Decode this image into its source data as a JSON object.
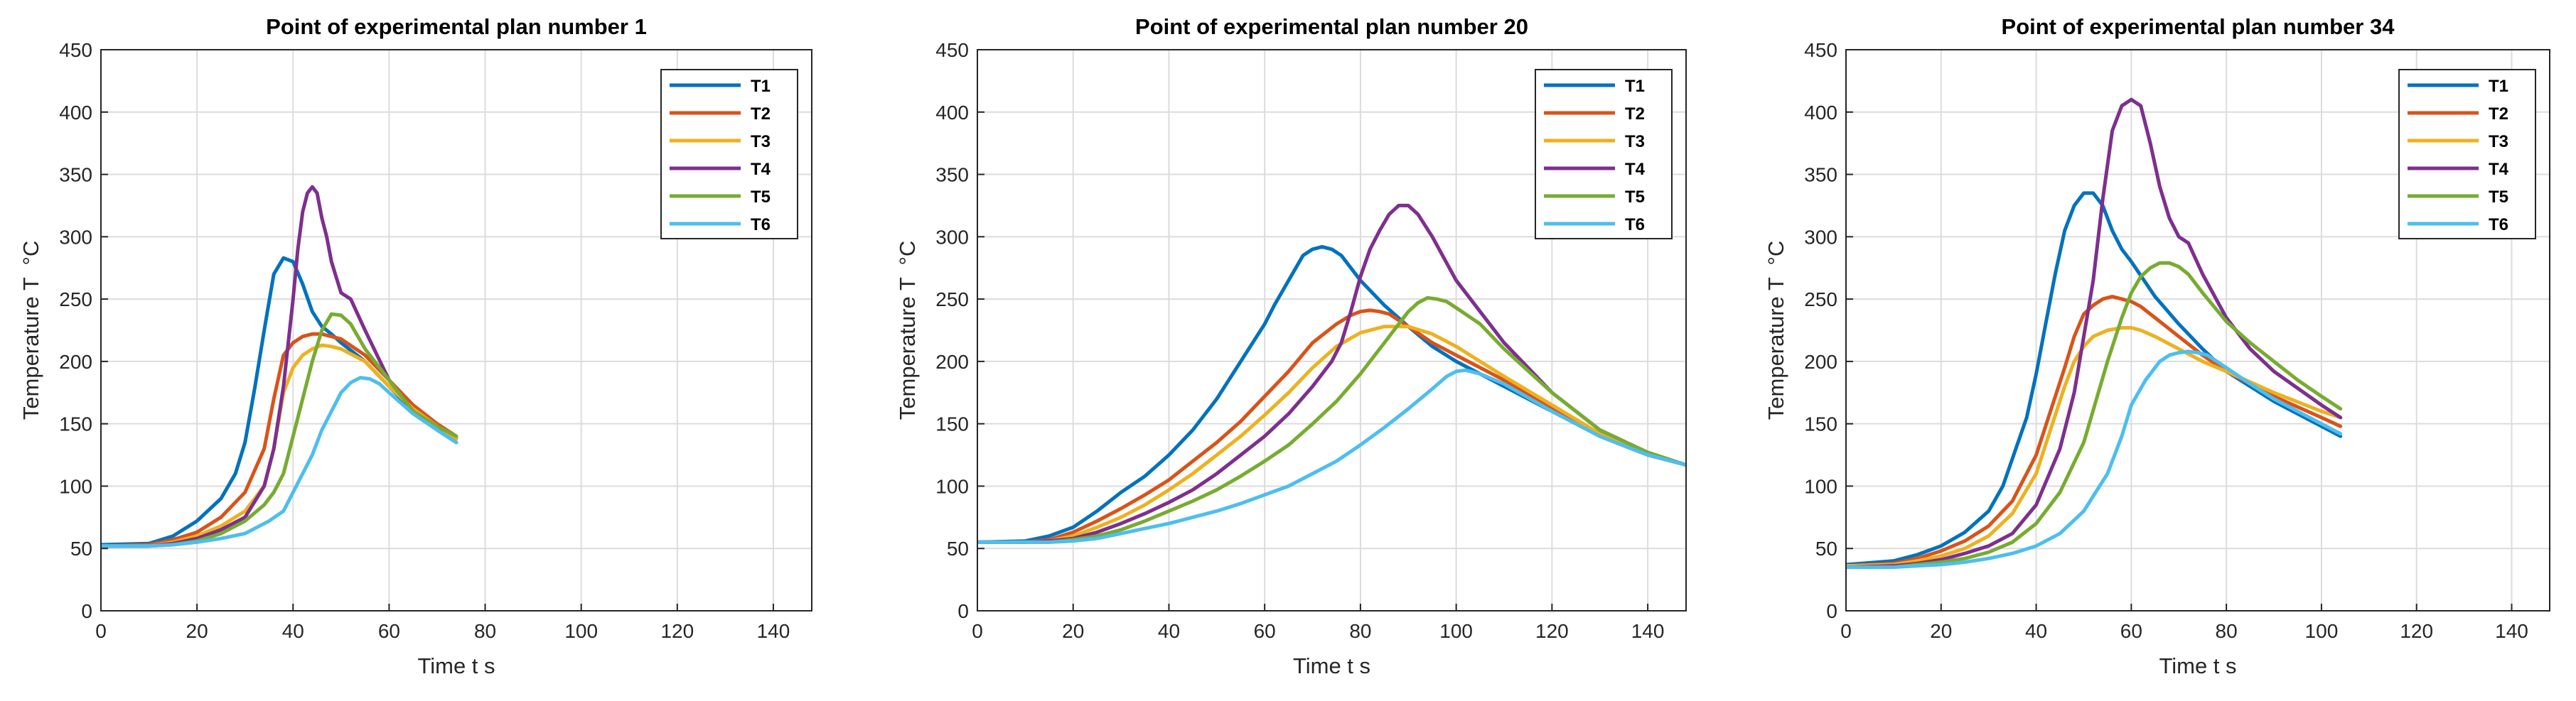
{
  "colors": {
    "T1": "#0072BD",
    "T2": "#D95319",
    "T3": "#EDB120",
    "T4": "#7E2F8E",
    "T5": "#77AC30",
    "T6": "#4DBEEE",
    "grid": "#dcdcdc",
    "axis": "#262626"
  },
  "chart_data": [
    {
      "type": "line",
      "title": "Point of experimental plan number 1",
      "xlabel": "Time t s",
      "ylabel": "Temperature T  °C",
      "xlim": [
        0,
        148
      ],
      "ylim": [
        0,
        450
      ],
      "xticks": [
        0,
        20,
        40,
        60,
        80,
        100,
        120,
        140
      ],
      "yticks": [
        0,
        50,
        100,
        150,
        200,
        250,
        300,
        350,
        400,
        450
      ],
      "grid": true,
      "legend": "top-right",
      "series": [
        {
          "name": "T1",
          "x": [
            0,
            10,
            15,
            20,
            25,
            28,
            30,
            32,
            34,
            36,
            38,
            40,
            42,
            44,
            46,
            48,
            50,
            55,
            60,
            65,
            70,
            74
          ],
          "y": [
            53,
            54,
            60,
            72,
            90,
            110,
            135,
            178,
            225,
            270,
            283,
            280,
            262,
            240,
            228,
            222,
            215,
            200,
            180,
            160,
            148,
            138
          ]
        },
        {
          "name": "T2",
          "x": [
            0,
            10,
            15,
            20,
            25,
            30,
            34,
            36,
            38,
            40,
            42,
            44,
            46,
            48,
            50,
            55,
            60,
            65,
            70,
            74
          ],
          "y": [
            52,
            53,
            57,
            63,
            75,
            95,
            130,
            170,
            205,
            215,
            220,
            222,
            222,
            220,
            218,
            205,
            185,
            165,
            150,
            140
          ]
        },
        {
          "name": "T3",
          "x": [
            0,
            10,
            15,
            20,
            25,
            30,
            34,
            36,
            38,
            40,
            42,
            44,
            46,
            48,
            50,
            55,
            60,
            65,
            70,
            74
          ],
          "y": [
            52,
            52,
            55,
            60,
            68,
            80,
            100,
            130,
            175,
            195,
            205,
            210,
            213,
            212,
            210,
            200,
            180,
            162,
            148,
            138
          ]
        },
        {
          "name": "T4",
          "x": [
            0,
            10,
            15,
            20,
            25,
            30,
            34,
            36,
            38,
            40,
            41,
            42,
            43,
            44,
            45,
            46,
            47,
            48,
            50,
            52,
            55,
            60,
            65,
            70,
            74
          ],
          "y": [
            52,
            52,
            54,
            58,
            65,
            75,
            100,
            130,
            180,
            250,
            290,
            320,
            335,
            340,
            335,
            315,
            300,
            280,
            255,
            250,
            225,
            185,
            160,
            145,
            135
          ]
        },
        {
          "name": "T5",
          "x": [
            0,
            10,
            15,
            20,
            25,
            30,
            34,
            36,
            38,
            40,
            42,
            44,
            46,
            48,
            50,
            52,
            55,
            60,
            65,
            70,
            74
          ],
          "y": [
            52,
            52,
            53,
            56,
            62,
            72,
            85,
            95,
            110,
            140,
            170,
            200,
            225,
            238,
            237,
            230,
            210,
            185,
            160,
            148,
            140
          ]
        },
        {
          "name": "T6",
          "x": [
            0,
            10,
            15,
            20,
            25,
            30,
            35,
            38,
            40,
            42,
            44,
            46,
            48,
            50,
            52,
            54,
            56,
            58,
            60,
            65,
            70,
            74
          ],
          "y": [
            52,
            52,
            53,
            55,
            58,
            62,
            72,
            80,
            95,
            110,
            125,
            145,
            160,
            175,
            183,
            187,
            186,
            182,
            175,
            158,
            145,
            135
          ]
        }
      ]
    },
    {
      "type": "line",
      "title": "Point of experimental plan number 20",
      "xlabel": "Time t s",
      "ylabel": "Temperature T  °C",
      "xlim": [
        0,
        148
      ],
      "ylim": [
        0,
        450
      ],
      "xticks": [
        0,
        20,
        40,
        60,
        80,
        100,
        120,
        140
      ],
      "yticks": [
        0,
        50,
        100,
        150,
        200,
        250,
        300,
        350,
        400,
        450
      ],
      "grid": true,
      "legend": "top-right",
      "series": [
        {
          "name": "T1",
          "x": [
            0,
            10,
            15,
            20,
            25,
            30,
            35,
            40,
            45,
            50,
            55,
            60,
            62,
            65,
            68,
            70,
            72,
            74,
            76,
            80,
            85,
            90,
            95,
            100,
            110,
            120,
            130,
            140,
            148
          ],
          "y": [
            55,
            56,
            60,
            67,
            80,
            95,
            108,
            125,
            145,
            170,
            200,
            230,
            245,
            265,
            285,
            290,
            292,
            290,
            285,
            265,
            245,
            228,
            212,
            200,
            180,
            160,
            140,
            125,
            117
          ]
        },
        {
          "name": "T2",
          "x": [
            0,
            10,
            15,
            20,
            25,
            30,
            35,
            40,
            45,
            50,
            55,
            60,
            65,
            70,
            75,
            78,
            80,
            82,
            84,
            86,
            90,
            95,
            100,
            110,
            120,
            130,
            140,
            148
          ],
          "y": [
            55,
            55,
            57,
            63,
            72,
            82,
            93,
            105,
            120,
            135,
            152,
            172,
            192,
            215,
            230,
            237,
            240,
            241,
            240,
            238,
            228,
            215,
            205,
            185,
            162,
            140,
            125,
            117
          ]
        },
        {
          "name": "T3",
          "x": [
            0,
            10,
            15,
            20,
            25,
            30,
            35,
            40,
            45,
            50,
            55,
            60,
            65,
            70,
            75,
            80,
            85,
            90,
            95,
            100,
            110,
            120,
            130,
            140,
            148
          ],
          "y": [
            55,
            55,
            56,
            60,
            67,
            75,
            85,
            97,
            110,
            125,
            140,
            157,
            175,
            195,
            212,
            223,
            228,
            228,
            222,
            212,
            188,
            165,
            142,
            125,
            117
          ]
        },
        {
          "name": "T4",
          "x": [
            0,
            10,
            15,
            20,
            25,
            30,
            35,
            40,
            45,
            50,
            55,
            60,
            65,
            70,
            74,
            76,
            78,
            80,
            82,
            84,
            86,
            88,
            90,
            92,
            95,
            100,
            105,
            110,
            120,
            130,
            140,
            148
          ],
          "y": [
            55,
            55,
            56,
            58,
            63,
            70,
            78,
            87,
            97,
            110,
            125,
            140,
            158,
            180,
            200,
            215,
            240,
            268,
            290,
            305,
            318,
            325,
            325,
            318,
            300,
            265,
            240,
            215,
            175,
            145,
            127,
            117
          ]
        },
        {
          "name": "T5",
          "x": [
            0,
            10,
            15,
            20,
            25,
            30,
            35,
            40,
            45,
            50,
            55,
            60,
            65,
            70,
            75,
            80,
            85,
            88,
            90,
            92,
            94,
            96,
            98,
            100,
            105,
            110,
            120,
            130,
            140,
            148
          ],
          "y": [
            55,
            55,
            55,
            57,
            60,
            65,
            72,
            80,
            88,
            97,
            108,
            120,
            133,
            150,
            168,
            190,
            215,
            230,
            240,
            247,
            251,
            250,
            248,
            243,
            230,
            210,
            175,
            145,
            127,
            117
          ]
        },
        {
          "name": "T6",
          "x": [
            0,
            10,
            15,
            20,
            25,
            30,
            35,
            40,
            45,
            50,
            55,
            60,
            65,
            70,
            75,
            80,
            85,
            90,
            95,
            98,
            100,
            102,
            105,
            110,
            120,
            130,
            140,
            148
          ],
          "y": [
            55,
            55,
            55,
            56,
            58,
            62,
            66,
            70,
            75,
            80,
            86,
            93,
            100,
            110,
            120,
            133,
            147,
            162,
            178,
            188,
            192,
            193,
            190,
            182,
            160,
            140,
            125,
            117
          ]
        }
      ]
    },
    {
      "type": "line",
      "title": "Point of experimental plan number 34",
      "xlabel": "Time t s",
      "ylabel": "Temperature T  °C",
      "xlim": [
        0,
        148
      ],
      "ylim": [
        0,
        450
      ],
      "xticks": [
        0,
        20,
        40,
        60,
        80,
        100,
        120,
        140
      ],
      "yticks": [
        0,
        50,
        100,
        150,
        200,
        250,
        300,
        350,
        400,
        450
      ],
      "grid": true,
      "legend": "top-right",
      "series": [
        {
          "name": "T1",
          "x": [
            0,
            10,
            15,
            20,
            25,
            30,
            33,
            35,
            38,
            40,
            42,
            44,
            46,
            48,
            50,
            52,
            54,
            56,
            58,
            60,
            65,
            70,
            75,
            80,
            90,
            100,
            104
          ],
          "y": [
            37,
            40,
            45,
            52,
            63,
            80,
            100,
            122,
            155,
            190,
            230,
            270,
            305,
            325,
            335,
            335,
            325,
            305,
            290,
            280,
            252,
            230,
            210,
            192,
            168,
            148,
            140
          ]
        },
        {
          "name": "T2",
          "x": [
            0,
            10,
            15,
            20,
            25,
            30,
            35,
            40,
            43,
            46,
            48,
            50,
            52,
            54,
            56,
            58,
            60,
            62,
            65,
            70,
            75,
            80,
            90,
            100,
            104
          ],
          "y": [
            36,
            38,
            42,
            48,
            56,
            68,
            88,
            125,
            160,
            195,
            220,
            238,
            245,
            250,
            252,
            250,
            248,
            244,
            235,
            220,
            205,
            192,
            172,
            155,
            148
          ]
        },
        {
          "name": "T3",
          "x": [
            0,
            10,
            15,
            20,
            25,
            30,
            35,
            40,
            43,
            46,
            48,
            50,
            52,
            55,
            58,
            60,
            62,
            65,
            70,
            75,
            80,
            90,
            100,
            104
          ],
          "y": [
            36,
            37,
            40,
            44,
            50,
            60,
            78,
            110,
            145,
            180,
            200,
            212,
            220,
            225,
            227,
            227,
            225,
            220,
            210,
            200,
            192,
            175,
            160,
            155
          ]
        },
        {
          "name": "T4",
          "x": [
            0,
            10,
            15,
            20,
            25,
            30,
            35,
            40,
            45,
            48,
            50,
            52,
            54,
            56,
            58,
            60,
            62,
            64,
            66,
            68,
            70,
            72,
            75,
            80,
            85,
            90,
            100,
            104
          ],
          "y": [
            35,
            36,
            38,
            41,
            46,
            52,
            62,
            85,
            130,
            175,
            220,
            265,
            330,
            385,
            405,
            410,
            405,
            375,
            340,
            315,
            300,
            295,
            270,
            235,
            210,
            192,
            165,
            155
          ]
        },
        {
          "name": "T5",
          "x": [
            0,
            10,
            15,
            20,
            25,
            30,
            35,
            40,
            45,
            50,
            55,
            58,
            60,
            62,
            64,
            66,
            68,
            70,
            72,
            75,
            80,
            85,
            90,
            95,
            100,
            104
          ],
          "y": [
            35,
            35,
            37,
            39,
            42,
            47,
            55,
            70,
            95,
            135,
            200,
            235,
            255,
            268,
            275,
            279,
            279,
            276,
            270,
            255,
            232,
            215,
            200,
            185,
            172,
            162
          ]
        },
        {
          "name": "T6",
          "x": [
            0,
            10,
            15,
            20,
            25,
            30,
            35,
            40,
            45,
            50,
            55,
            58,
            60,
            63,
            66,
            68,
            70,
            72,
            74,
            76,
            80,
            85,
            90,
            100,
            104
          ],
          "y": [
            35,
            35,
            36,
            37,
            39,
            42,
            46,
            52,
            62,
            80,
            110,
            140,
            165,
            185,
            200,
            205,
            207,
            208,
            207,
            205,
            195,
            182,
            170,
            150,
            142
          ]
        }
      ]
    }
  ]
}
